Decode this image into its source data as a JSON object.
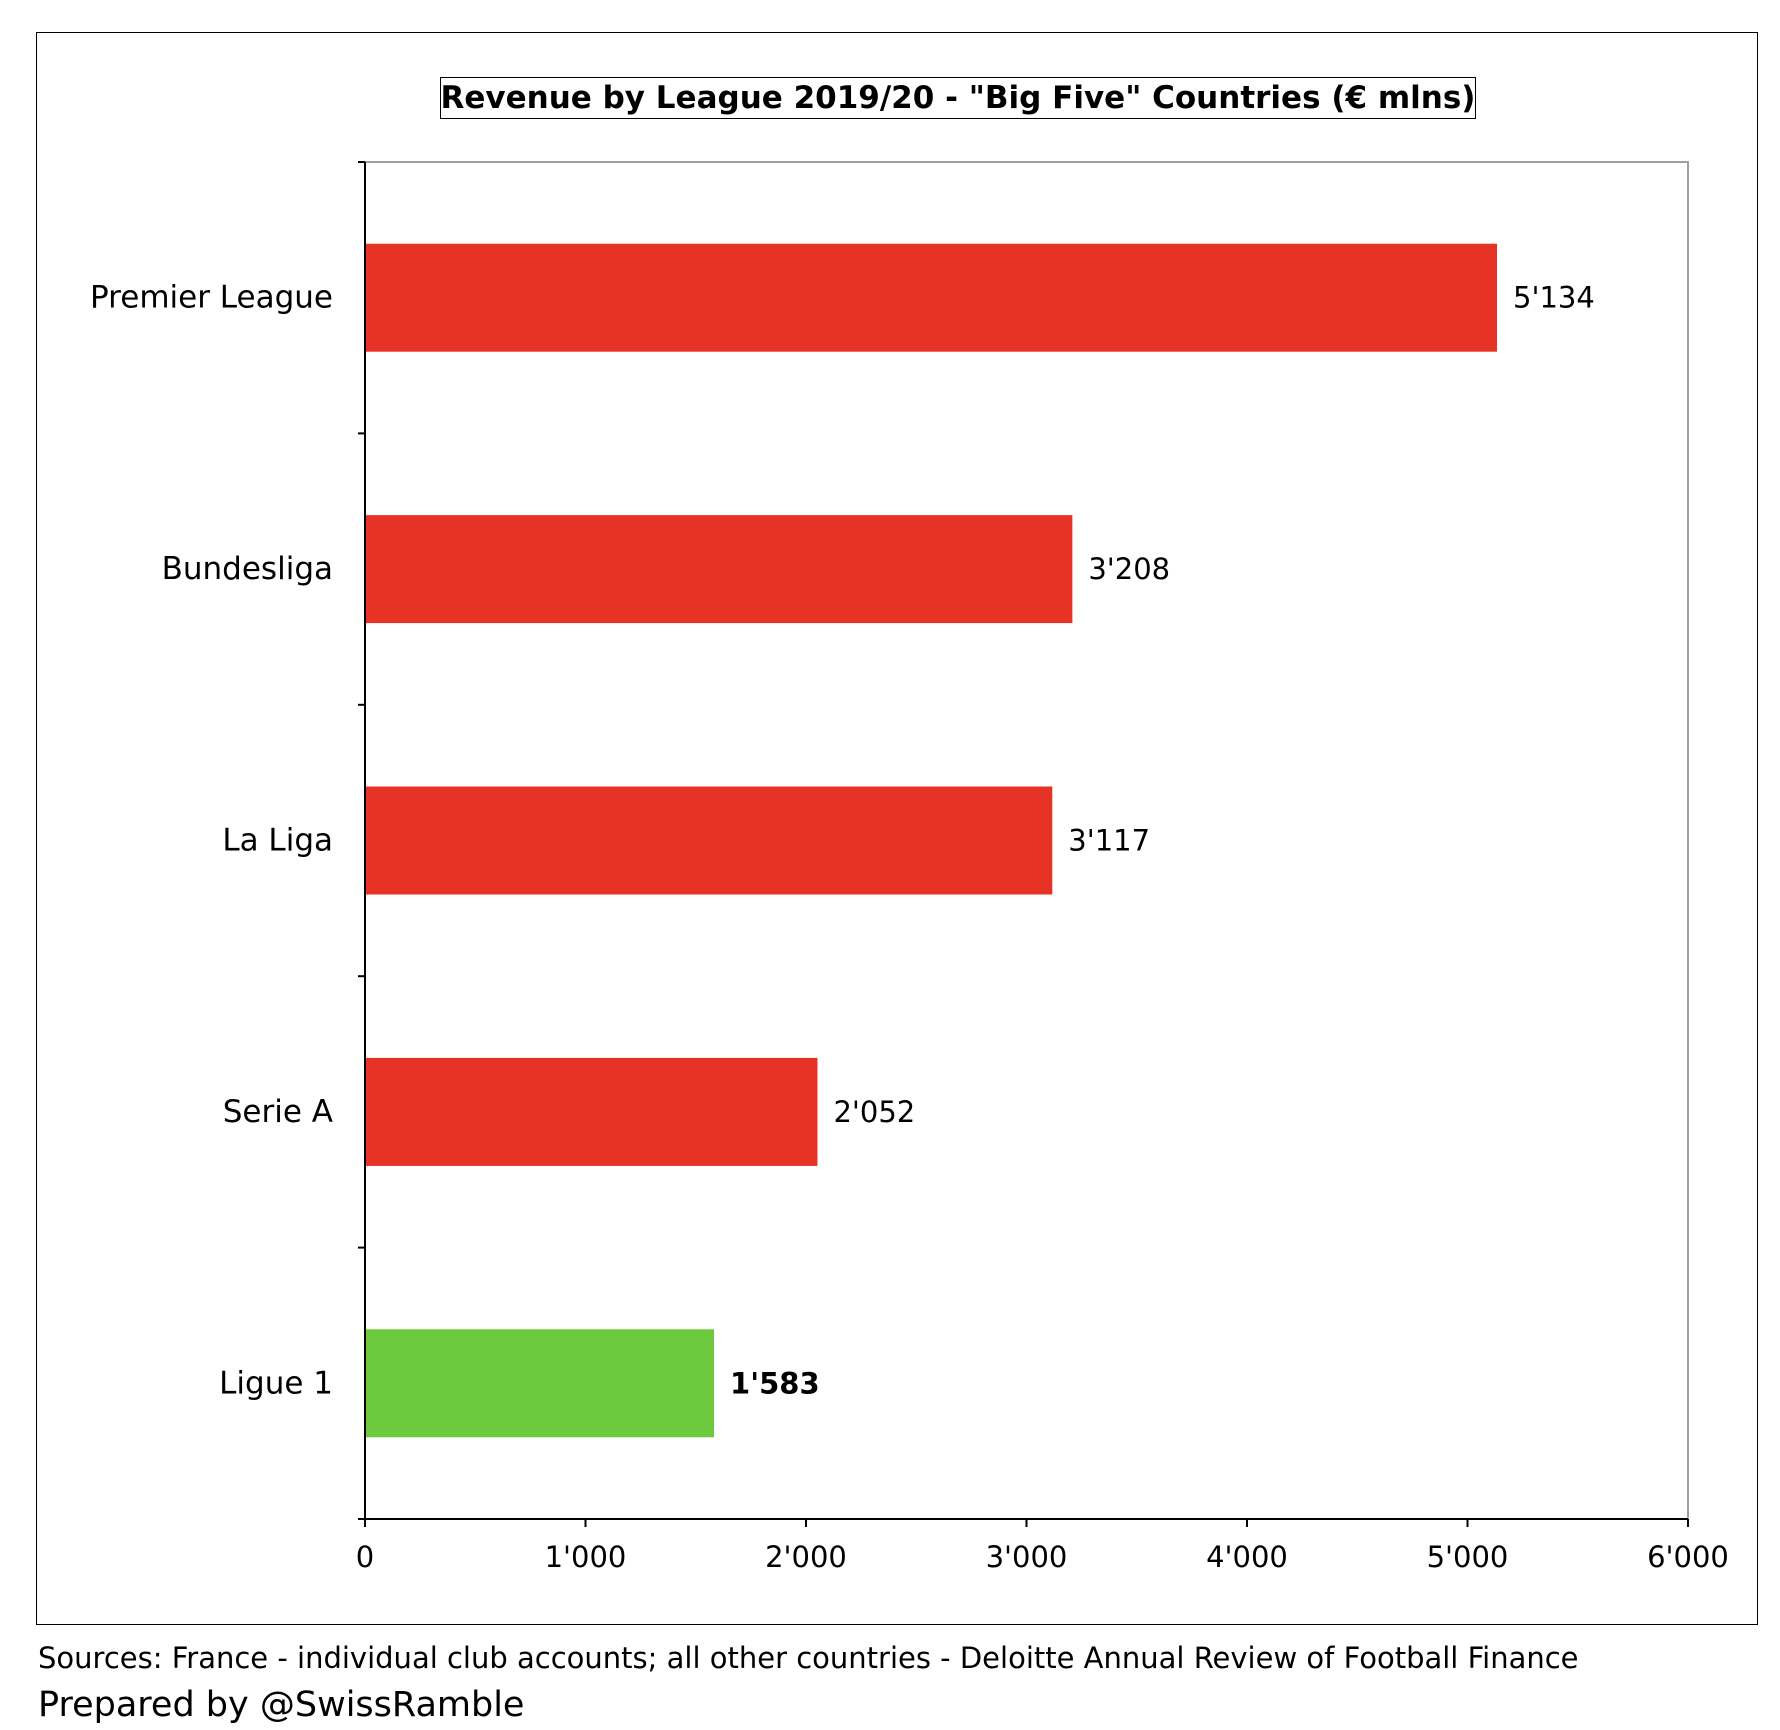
{
  "chart_data": {
    "type": "bar",
    "orientation": "horizontal",
    "title": "Revenue by League 2019/20 - \"Big Five\" Countries (€ mlns)",
    "categories": [
      "Premier League",
      "Bundesliga",
      "La Liga",
      "Serie A",
      "Ligue 1"
    ],
    "values": [
      5134,
      3208,
      3117,
      2052,
      1583
    ],
    "value_labels": [
      "5'134",
      "3'208",
      "3'117",
      "2'052",
      "1'583"
    ],
    "highlight_category": "Ligue 1",
    "xlim": [
      0,
      6000
    ],
    "x_ticks": [
      0,
      1000,
      2000,
      3000,
      4000,
      5000,
      6000
    ],
    "x_tick_labels": [
      "0",
      "1'000",
      "2'000",
      "3'000",
      "4'000",
      "5'000",
      "6'000"
    ],
    "grid": false,
    "legend": "none",
    "colors": {
      "default_bar": "#E63325",
      "highlight_bar": "#6DC93D",
      "axis": "#000000",
      "plot_border": "#A0A0A0"
    }
  },
  "footer": {
    "sources": "Sources: France - individual club accounts; all other countries - Deloitte Annual Review of Football Finance",
    "prepared_by": "Prepared by @SwissRamble"
  }
}
